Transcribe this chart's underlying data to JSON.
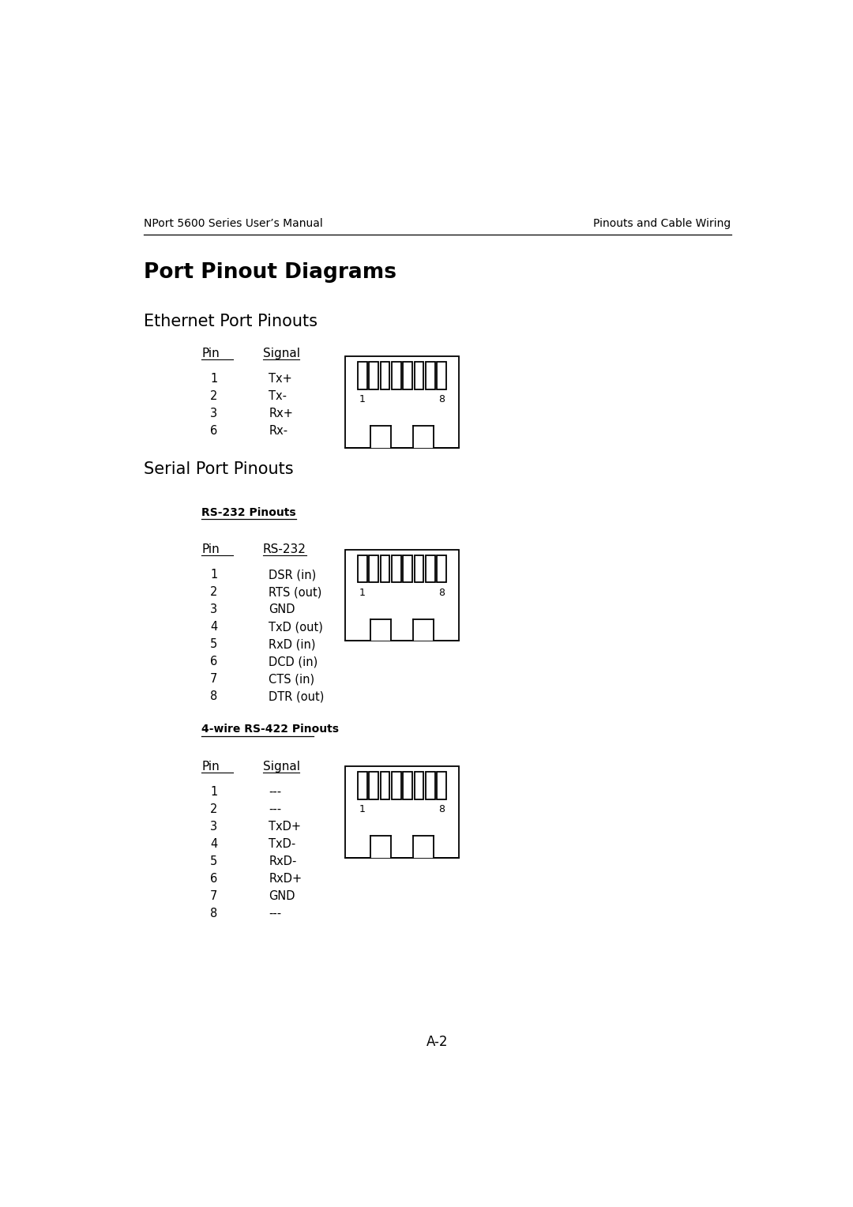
{
  "header_left": "NPort 5600 Series User’s Manual",
  "header_right": "Pinouts and Cable Wiring",
  "page_title": "Port Pinout Diagrams",
  "section1_title": "Ethernet Port Pinouts",
  "section2_title": "Serial Port Pinouts",
  "eth_col1_header": "Pin",
  "eth_col2_header": "Signal",
  "eth_pins": [
    "1",
    "2",
    "3",
    "6"
  ],
  "eth_signals": [
    "Tx+",
    "Tx-",
    "Rx+",
    "Rx-"
  ],
  "rs232_subtitle": "RS-232 Pinouts",
  "rs232_col1_header": "Pin",
  "rs232_col2_header": "RS-232",
  "rs232_pins": [
    "1",
    "2",
    "3",
    "4",
    "5",
    "6",
    "7",
    "8"
  ],
  "rs232_signals": [
    "DSR (in)",
    "RTS (out)",
    "GND",
    "TxD (out)",
    "RxD (in)",
    "DCD (in)",
    "CTS (in)",
    "DTR (out)"
  ],
  "rs422_subtitle": "4-wire RS-422 Pinouts",
  "rs422_col1_header": "Pin",
  "rs422_col2_header": "Signal",
  "rs422_pins": [
    "1",
    "2",
    "3",
    "4",
    "5",
    "6",
    "7",
    "8"
  ],
  "rs422_signals": [
    "---",
    "---",
    "TxD+",
    "TxD-",
    "RxD-",
    "RxD+",
    "GND",
    "---"
  ],
  "page_number": "A-2",
  "bg_color": "#ffffff",
  "text_color": "#000000",
  "line_color": "#000000"
}
